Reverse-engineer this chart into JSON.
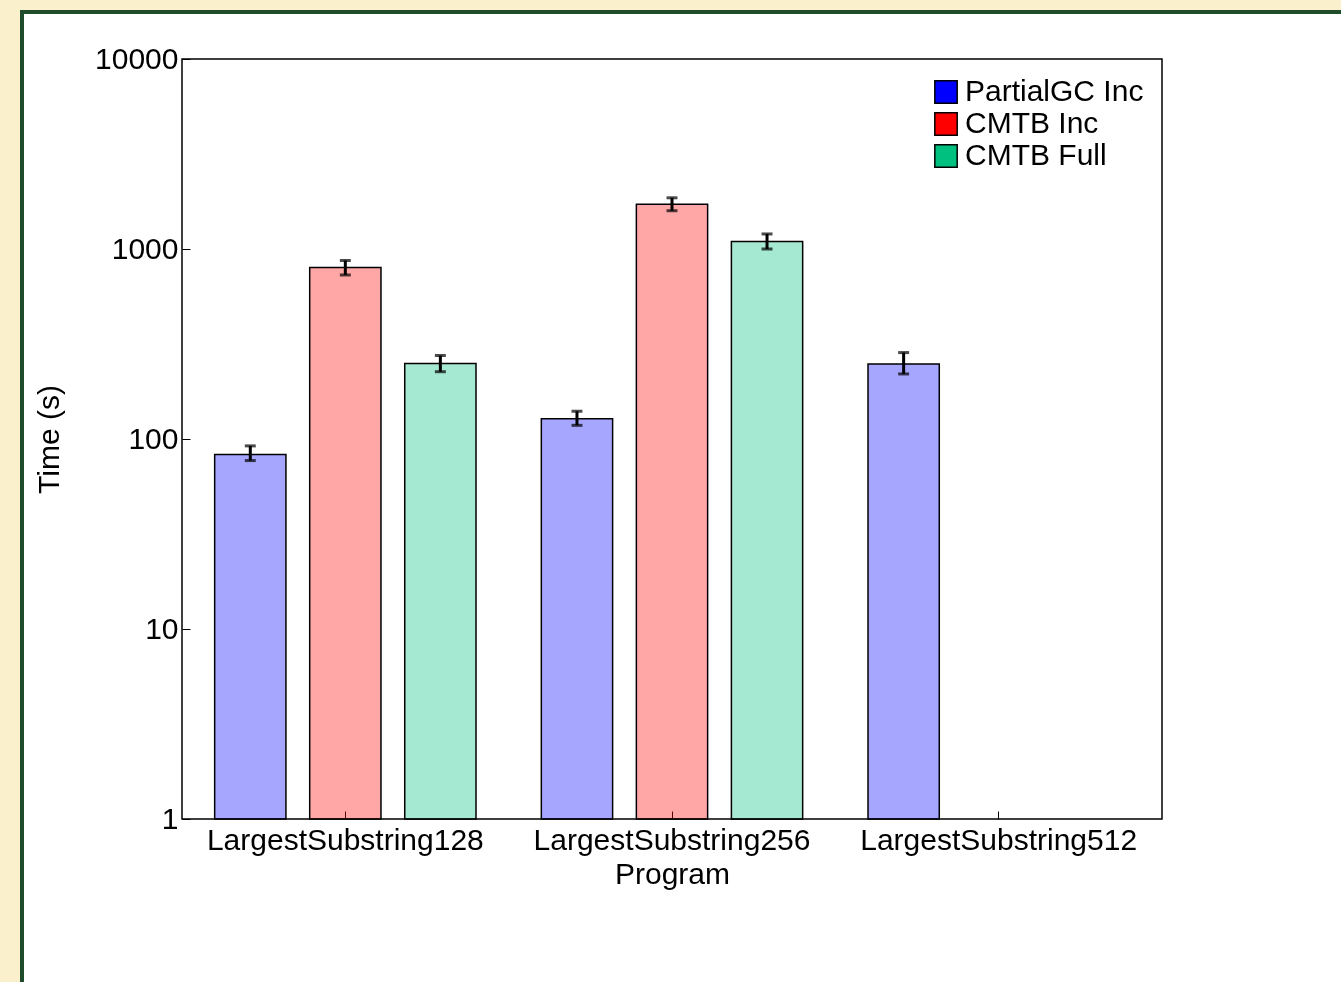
{
  "chart_data": {
    "type": "bar",
    "xlabel": "Program",
    "ylabel": "Time (s)",
    "categories": [
      "LargestSubstring128",
      "LargestSubstring256",
      "LargestSubstring512"
    ],
    "series": [
      {
        "name": "PartialGC Inc",
        "color": "#0000ff",
        "values": [
          83,
          128,
          248
        ],
        "errors": [
          [
            77,
            92
          ],
          [
            118,
            140
          ],
          [
            220,
            285
          ]
        ]
      },
      {
        "name": "CMTB Inc",
        "color": "#ff0000",
        "values": [
          800,
          1720,
          null
        ],
        "errors": [
          [
            730,
            870
          ],
          [
            1590,
            1860
          ],
          null
        ]
      },
      {
        "name": "CMTB Full",
        "color": "#00c080",
        "values": [
          250,
          1095,
          null
        ],
        "errors": [
          [
            226,
            275
          ],
          [
            1000,
            1200
          ],
          null
        ]
      }
    ],
    "log": true,
    "ylim": [
      1,
      10000
    ],
    "yticks": [
      1,
      10,
      100,
      1000,
      10000
    ],
    "grid": false,
    "legend": "top right"
  }
}
